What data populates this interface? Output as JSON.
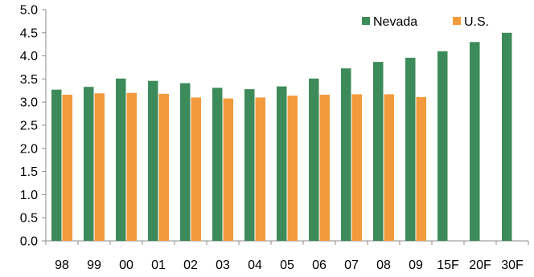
{
  "chart_data": {
    "type": "bar",
    "categories": [
      "98",
      "99",
      "00",
      "01",
      "02",
      "03",
      "04",
      "05",
      "06",
      "07",
      "08",
      "09",
      "15F",
      "20F",
      "30F"
    ],
    "series": [
      {
        "name": "Nevada",
        "color": "#3d8b5a",
        "values": [
          3.27,
          3.33,
          3.51,
          3.46,
          3.41,
          3.31,
          3.28,
          3.34,
          3.51,
          3.73,
          3.87,
          3.96,
          4.1,
          4.3,
          4.5
        ]
      },
      {
        "name": "U.S.",
        "color": "#f39a3c",
        "values": [
          3.16,
          3.19,
          3.2,
          3.18,
          3.1,
          3.08,
          3.1,
          3.14,
          3.16,
          3.17,
          3.17,
          3.11,
          null,
          null,
          null
        ]
      }
    ],
    "y_ticks": [
      "0.0",
      "0.5",
      "1.0",
      "1.5",
      "2.0",
      "2.5",
      "3.0",
      "3.5",
      "4.0",
      "4.5",
      "5.0"
    ],
    "ylim": [
      0,
      5
    ],
    "grid": false,
    "legend": "top-right"
  }
}
